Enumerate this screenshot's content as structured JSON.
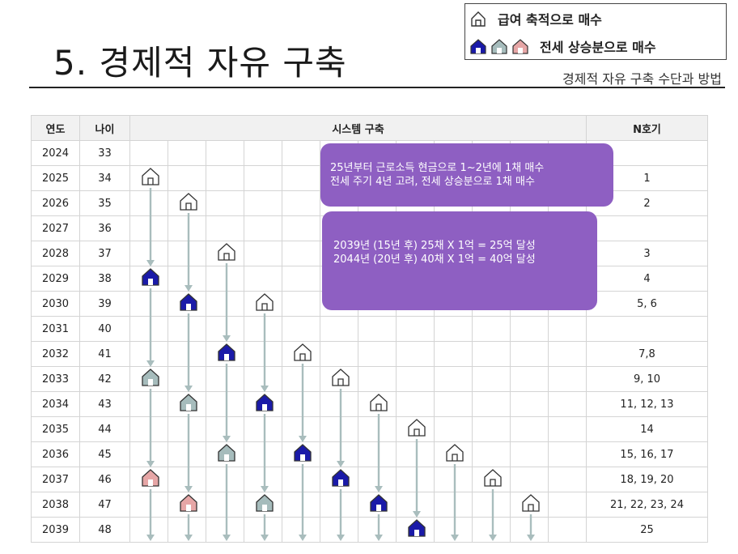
{
  "title": "5. 경제적 자유 구축",
  "subtitle": "경제적 자유 구축 수단과 방법",
  "legend": {
    "row1": "급여 축적으로 매수",
    "row2": "전세 상승분으로 매수"
  },
  "table": {
    "headers": {
      "year": "연도",
      "age": "나이",
      "system": "시스템 구축",
      "n": "N호기"
    },
    "rows": [
      {
        "year": "2024",
        "age": "33",
        "n": ""
      },
      {
        "year": "2025",
        "age": "34",
        "n": "1"
      },
      {
        "year": "2026",
        "age": "35",
        "n": "2"
      },
      {
        "year": "2027",
        "age": "36",
        "n": ""
      },
      {
        "year": "2028",
        "age": "37",
        "n": "3"
      },
      {
        "year": "2029",
        "age": "38",
        "n": "4"
      },
      {
        "year": "2030",
        "age": "39",
        "n": "5, 6"
      },
      {
        "year": "2031",
        "age": "40",
        "n": ""
      },
      {
        "year": "2032",
        "age": "41",
        "n": "7,8"
      },
      {
        "year": "2033",
        "age": "42",
        "n": "9, 10"
      },
      {
        "year": "2034",
        "age": "43",
        "n": "11, 12, 13"
      },
      {
        "year": "2035",
        "age": "44",
        "n": "14"
      },
      {
        "year": "2036",
        "age": "45",
        "n": "15, 16, 17"
      },
      {
        "year": "2037",
        "age": "46",
        "n": "18, 19, 20"
      },
      {
        "year": "2038",
        "age": "47",
        "n": "21, 22, 23, 24"
      },
      {
        "year": "2039",
        "age": "48",
        "n": "25"
      }
    ]
  },
  "notes": {
    "box1_line1": "25년부터 근로소득 현금으로 1~2년에 1채 매수",
    "box1_line2": "전세 주기 4년 고려, 전세 상승분으로 1채 매수",
    "box2_line1": "2039년 (15년 후) 25채 X 1억 = 25억 달성",
    "box2_line2": "2044년 (20년 후) 40채 X 1억 = 40억 달성"
  },
  "colors": {
    "outline_house": "#ffffff",
    "navy_house": "#1a1aa8",
    "gray_house": "#a6bcbc",
    "pink_house": "#e6a6a6",
    "arrow": "#a9bdbd",
    "note_box": "#8e5fc2"
  },
  "houses": [
    {
      "col": 0,
      "row": 1,
      "kind": "outline"
    },
    {
      "col": 1,
      "row": 2,
      "kind": "outline"
    },
    {
      "col": 2,
      "row": 4,
      "kind": "outline"
    },
    {
      "col": 0,
      "row": 5,
      "kind": "navy"
    },
    {
      "col": 1,
      "row": 6,
      "kind": "navy"
    },
    {
      "col": 3,
      "row": 6,
      "kind": "outline"
    },
    {
      "col": 2,
      "row": 8,
      "kind": "navy"
    },
    {
      "col": 4,
      "row": 8,
      "kind": "outline"
    },
    {
      "col": 0,
      "row": 9,
      "kind": "gray"
    },
    {
      "col": 5,
      "row": 9,
      "kind": "outline"
    },
    {
      "col": 1,
      "row": 10,
      "kind": "gray"
    },
    {
      "col": 3,
      "row": 10,
      "kind": "navy"
    },
    {
      "col": 6,
      "row": 10,
      "kind": "outline"
    },
    {
      "col": 7,
      "row": 11,
      "kind": "outline"
    },
    {
      "col": 2,
      "row": 12,
      "kind": "gray"
    },
    {
      "col": 4,
      "row": 12,
      "kind": "navy"
    },
    {
      "col": 8,
      "row": 12,
      "kind": "outline"
    },
    {
      "col": 0,
      "row": 13,
      "kind": "pink"
    },
    {
      "col": 5,
      "row": 13,
      "kind": "navy"
    },
    {
      "col": 9,
      "row": 13,
      "kind": "outline"
    },
    {
      "col": 1,
      "row": 14,
      "kind": "pink"
    },
    {
      "col": 3,
      "row": 14,
      "kind": "gray"
    },
    {
      "col": 6,
      "row": 14,
      "kind": "navy"
    },
    {
      "col": 10,
      "row": 14,
      "kind": "outline"
    },
    {
      "col": 7,
      "row": 15,
      "kind": "navy"
    }
  ]
}
